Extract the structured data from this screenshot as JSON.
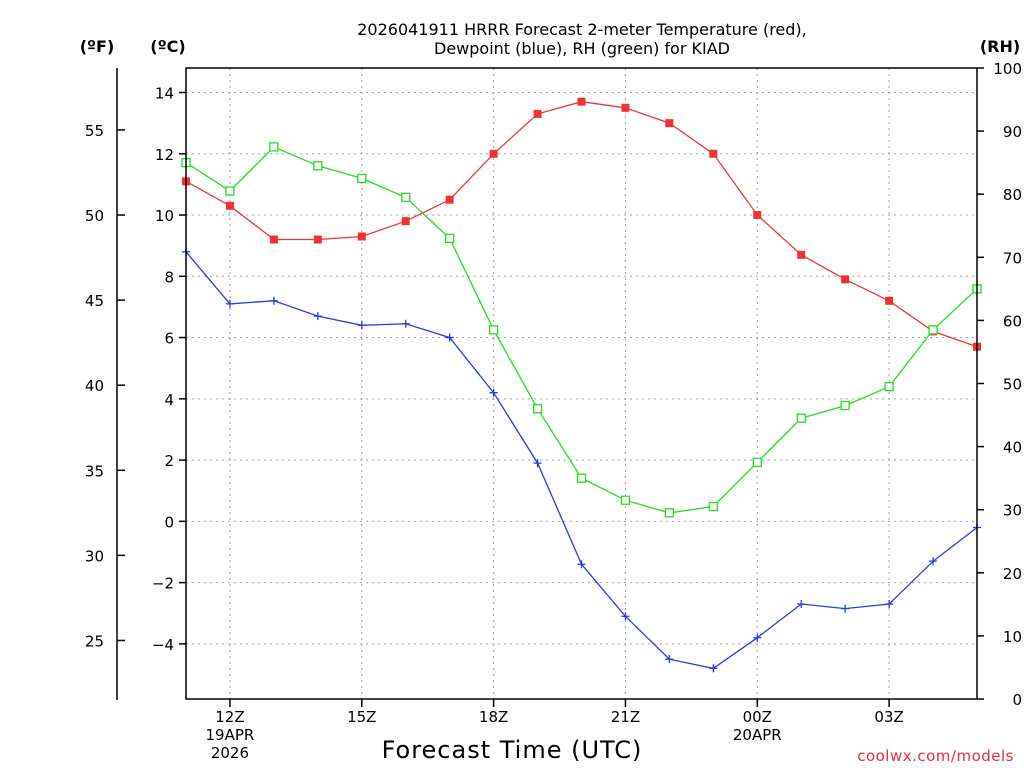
{
  "chart_data": {
    "type": "line",
    "title": "2026041911 HRRR Forecast 2-meter Temperature (red),",
    "subtitle": "Dewpoint (blue), RH (green) for KIAD",
    "xlabel": "Forecast Time (UTC)",
    "credit": "coolwx.com/models",
    "units": {
      "fahrenheit": "(ºF)",
      "celsius": "(ºC)",
      "rh": "(RH)"
    },
    "x_hours": [
      11,
      12,
      13,
      14,
      15,
      16,
      17,
      18,
      19,
      20,
      21,
      22,
      23,
      24,
      25,
      26,
      27,
      28,
      29
    ],
    "xlim": [
      11,
      29
    ],
    "x_ticks": [
      {
        "hour": 12,
        "lines": [
          "12Z",
          "19APR",
          "2026"
        ]
      },
      {
        "hour": 15,
        "lines": [
          "15Z"
        ]
      },
      {
        "hour": 18,
        "lines": [
          "18Z"
        ]
      },
      {
        "hour": 21,
        "lines": [
          "21Z"
        ]
      },
      {
        "hour": 24,
        "lines": [
          "00Z",
          "20APR"
        ]
      },
      {
        "hour": 27,
        "lines": [
          "03Z"
        ]
      }
    ],
    "celsius_axis": {
      "ylim": [
        -5.8,
        14.8
      ],
      "ticks": [
        "14",
        "12",
        "10",
        "8",
        "6",
        "4",
        "2",
        "0",
        "−2",
        "−4"
      ],
      "tick_values": [
        14,
        12,
        10,
        8,
        6,
        4,
        2,
        0,
        -2,
        -4
      ]
    },
    "fahrenheit_axis": {
      "ylim": [
        21.56,
        58.64
      ],
      "ticks": [
        "55",
        "50",
        "45",
        "40",
        "35",
        "30",
        "25"
      ],
      "tick_values": [
        55,
        50,
        45,
        40,
        35,
        30,
        25
      ]
    },
    "rh_axis": {
      "ylim": [
        0,
        100
      ],
      "ticks": [
        "100",
        "90",
        "80",
        "70",
        "60",
        "50",
        "40",
        "30",
        "20",
        "10",
        "0"
      ],
      "tick_values": [
        100,
        90,
        80,
        70,
        60,
        50,
        40,
        30,
        20,
        10,
        0
      ]
    },
    "series": [
      {
        "name": "Temperature",
        "axis": "celsius",
        "color": "#ee3333",
        "marker": "filled-square",
        "values": [
          11.1,
          10.3,
          9.2,
          9.2,
          9.3,
          9.8,
          10.5,
          12.0,
          13.3,
          13.7,
          13.5,
          13.0,
          12.0,
          10.0,
          8.7,
          7.9,
          7.2,
          6.2,
          5.7
        ]
      },
      {
        "name": "Dewpoint",
        "axis": "celsius",
        "color": "#2a3ae0",
        "marker": "plus",
        "values": [
          8.8,
          7.1,
          7.2,
          6.7,
          6.4,
          6.45,
          6.0,
          4.2,
          1.9,
          -1.4,
          -3.1,
          -4.5,
          -4.8,
          -3.8,
          -2.7,
          -2.85,
          -2.7,
          -1.3,
          -0.2
        ]
      },
      {
        "name": "RH",
        "axis": "rh",
        "color": "#22dd22",
        "marker": "open-square",
        "values": [
          85,
          80.5,
          87.5,
          84.5,
          82.5,
          79.5,
          73,
          58.5,
          46,
          35,
          31.5,
          29.5,
          30.5,
          37.5,
          44.5,
          46.5,
          49.5,
          58.5,
          65
        ]
      }
    ]
  }
}
